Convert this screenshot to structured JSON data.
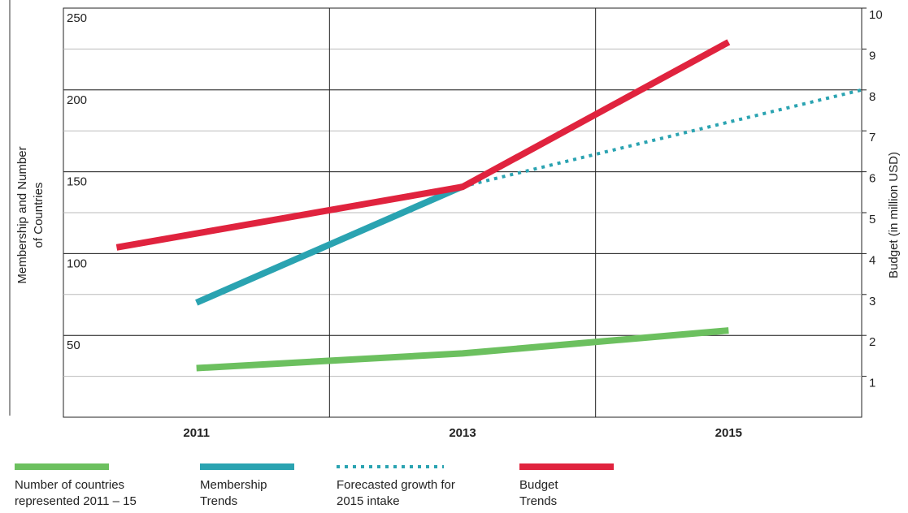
{
  "chart_data": {
    "type": "line",
    "y_label": "Membership and Number of Countries",
    "y2_label": "Budget (in million USD)",
    "xlim": [
      2010,
      2016
    ],
    "xticks": [
      2011,
      2013,
      2015
    ],
    "xgrid": [
      2012,
      2014
    ],
    "ylim": [
      0,
      250
    ],
    "yticks": [
      50,
      100,
      150,
      200,
      250
    ],
    "y2lim": [
      0,
      10
    ],
    "y2ticks": [
      1,
      2,
      3,
      4,
      5,
      6,
      7,
      8,
      9,
      10
    ],
    "grid": true,
    "series": [
      {
        "name": "Number of countries represented 2011 – 15",
        "color": "#6cc05f",
        "axis": "y",
        "x": [
          2011,
          2013,
          2015
        ],
        "values": [
          30,
          39,
          53
        ]
      },
      {
        "name": "Membership Trends",
        "color": "#2aa3b1",
        "axis": "y",
        "x": [
          2011,
          2013
        ],
        "values": [
          70,
          141
        ]
      },
      {
        "name": "Forecasted growth for 2015 intake",
        "color": "#2aa3b1",
        "axis": "y",
        "dashed": true,
        "x": [
          2013,
          2016
        ],
        "values": [
          141,
          200
        ]
      },
      {
        "name": "Budget Trends",
        "color": "#e0233e",
        "axis": "y2",
        "x": [
          2010.4,
          2013,
          2015
        ],
        "values": [
          4.15,
          5.63,
          9.17
        ]
      }
    ]
  }
}
